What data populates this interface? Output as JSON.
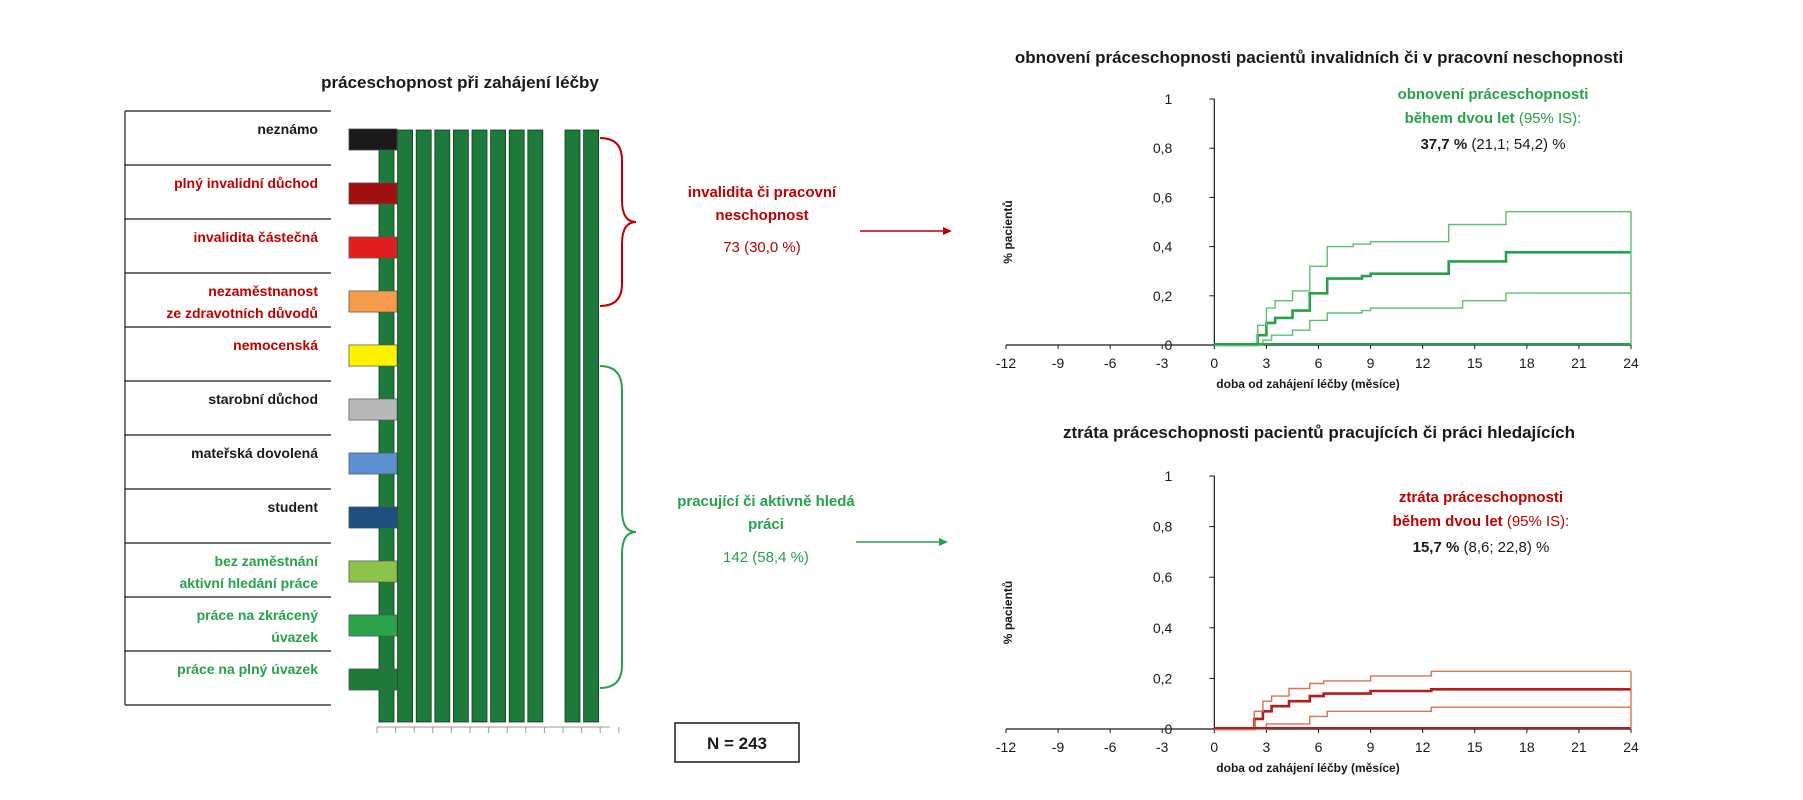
{
  "colors": {
    "green": "#27a24a",
    "green_light": "#5cc06e",
    "green_dark_bar": "#1d7a3a",
    "red": "#c00000",
    "red_curve": "#b71c1c",
    "red_light": "#e0704a",
    "black": "#1a1a1a"
  },
  "left_panel": {
    "title": "práceschopnost při zahájení léčby",
    "rows": [
      {
        "label": "neznámo",
        "color_label": "#1a1a1a",
        "swatch": "#1a1a1a"
      },
      {
        "label": "plný invalidní důchod",
        "color_label": "#c00000",
        "swatch": "#a0100f"
      },
      {
        "label": "invalidita částečná",
        "color_label": "#c00000",
        "swatch": "#e21f1f"
      },
      {
        "label": "nezaměstnanost",
        "label2": "ze zdravotních důvodů",
        "color_label": "#c00000",
        "swatch": "#f59b4b"
      },
      {
        "label": "nemocenská",
        "color_label": "#c00000",
        "swatch": "#fff200"
      },
      {
        "label": "starobní důchod",
        "color_label": "#1a1a1a",
        "swatch": "#b8b8b8"
      },
      {
        "label": "mateřská dovolená",
        "color_label": "#1a1a1a",
        "swatch": "#5b8fd0"
      },
      {
        "label": "student",
        "color_label": "#1a1a1a",
        "swatch": "#1f4e80"
      },
      {
        "label": "bez zaměstnání",
        "label2": "aktivní hledání práce",
        "color_label": "#27a24a",
        "swatch": "#8dc34a"
      },
      {
        "label": "práce na zkrácený",
        "label2": "úvazek",
        "color_label": "#27a24a",
        "swatch": "#2aa34b"
      },
      {
        "label": "práce na plný úvazek",
        "color_label": "#27a24a",
        "swatch": "#1d7a3a"
      }
    ],
    "bar_count": 11,
    "gap_after_bar": 9,
    "group_disabled": {
      "label": "invalidita či pracovní",
      "label2": "neschopnost",
      "count": "73 (30,0 %)"
    },
    "group_working": {
      "label": "pracující či aktivně hledá",
      "label2": "práci",
      "count": "142 (58,4 %)"
    },
    "n_label": "N = 243"
  },
  "chart_data": [
    {
      "type": "line",
      "title": "obnovení práceschopnosti pacientů invalidních či v pracovní neschopnosti",
      "xlabel": "doba od zahájení léčby (měsíce)",
      "ylabel": "% pacientů",
      "xlim": [
        -12,
        24
      ],
      "ylim": [
        0,
        1
      ],
      "xticks": [
        "-12",
        "-9",
        "-6",
        "-3",
        "0",
        "3",
        "6",
        "9",
        "12",
        "15",
        "18",
        "21",
        "24"
      ],
      "yticks": [
        "0",
        "0,2",
        "0,4",
        "0,6",
        "0,8",
        "1"
      ],
      "grid": false,
      "annotation": {
        "line1": "obnovení práceschopnosti",
        "line2a": "během dvou let",
        "line2b": "(95% IS):",
        "value_bold": "37,7 %",
        "value_rest": "(21,1; 54,2) %"
      },
      "series": [
        {
          "role": "estimate",
          "x": [
            0,
            2.5,
            2.5,
            3,
            3,
            3.5,
            3.5,
            4.5,
            4.5,
            5.5,
            5.5,
            6.5,
            6.5,
            8.5,
            8.5,
            9,
            9,
            13.5,
            13.5,
            16.8,
            16.8,
            24
          ],
          "y": [
            0,
            0,
            0.04,
            0.04,
            0.09,
            0.09,
            0.11,
            0.11,
            0.14,
            0.14,
            0.21,
            0.21,
            0.27,
            0.27,
            0.28,
            0.28,
            0.29,
            0.29,
            0.34,
            0.34,
            0.377,
            0.377
          ]
        },
        {
          "role": "upper",
          "x": [
            0,
            2.5,
            2.5,
            3,
            3,
            3.5,
            3.5,
            4.5,
            4.5,
            5.5,
            5.5,
            6.5,
            6.5,
            8,
            8,
            9,
            9,
            13.5,
            13.5,
            16.8,
            16.8,
            24
          ],
          "y": [
            0,
            0,
            0.08,
            0.08,
            0.15,
            0.15,
            0.18,
            0.18,
            0.22,
            0.22,
            0.32,
            0.32,
            0.4,
            0.4,
            0.41,
            0.41,
            0.42,
            0.42,
            0.49,
            0.49,
            0.542,
            0.542
          ]
        },
        {
          "role": "lower",
          "x": [
            0,
            2.8,
            2.8,
            3.3,
            3.3,
            4.5,
            4.5,
            5.5,
            5.5,
            6.5,
            6.5,
            8.5,
            8.5,
            9,
            9,
            14.3,
            14.3,
            16.8,
            16.8,
            24
          ],
          "y": [
            0,
            0,
            0.02,
            0.02,
            0.04,
            0.04,
            0.06,
            0.06,
            0.1,
            0.1,
            0.13,
            0.13,
            0.14,
            0.14,
            0.15,
            0.15,
            0.18,
            0.18,
            0.211,
            0.211
          ]
        }
      ]
    },
    {
      "type": "line",
      "title": "ztráta práceschopnosti pacientů pracujících či práci hledajících",
      "xlabel": "doba od zahájení léčby (měsíce)",
      "ylabel": "% pacientů",
      "xlim": [
        -12,
        24
      ],
      "ylim": [
        0,
        1
      ],
      "xticks": [
        "-12",
        "-9",
        "-6",
        "-3",
        "0",
        "3",
        "6",
        "9",
        "12",
        "15",
        "18",
        "21",
        "24"
      ],
      "yticks": [
        "0",
        "0,2",
        "0,4",
        "0,6",
        "0,8",
        "1"
      ],
      "grid": false,
      "annotation": {
        "line1": "ztráta práceschopnosti",
        "line2a": "během dvou let",
        "line2b": "(95% IS):",
        "value_bold": "15,7 %",
        "value_rest": "(8,6; 22,8) %"
      },
      "series": [
        {
          "role": "estimate",
          "x": [
            0,
            2.3,
            2.3,
            2.8,
            2.8,
            3.3,
            3.3,
            4.3,
            4.3,
            5.5,
            5.5,
            6.3,
            6.3,
            9,
            9,
            12.5,
            12.5,
            24
          ],
          "y": [
            0,
            0,
            0.04,
            0.04,
            0.07,
            0.07,
            0.09,
            0.09,
            0.11,
            0.11,
            0.13,
            0.13,
            0.14,
            0.14,
            0.15,
            0.15,
            0.157,
            0.157
          ]
        },
        {
          "role": "upper",
          "x": [
            0,
            2.3,
            2.3,
            2.8,
            2.8,
            3.3,
            3.3,
            4.3,
            4.3,
            5.5,
            5.5,
            6.3,
            6.3,
            9,
            9,
            12.5,
            12.5,
            24
          ],
          "y": [
            0,
            0,
            0.07,
            0.07,
            0.11,
            0.11,
            0.13,
            0.13,
            0.16,
            0.16,
            0.18,
            0.18,
            0.19,
            0.19,
            0.21,
            0.21,
            0.228,
            0.228
          ]
        },
        {
          "role": "lower",
          "x": [
            0,
            3,
            3,
            5.5,
            5.5,
            6.5,
            6.5,
            12.5,
            12.5,
            24
          ],
          "y": [
            0,
            0,
            0.02,
            0.02,
            0.05,
            0.05,
            0.07,
            0.07,
            0.086,
            0.086
          ]
        }
      ]
    }
  ]
}
